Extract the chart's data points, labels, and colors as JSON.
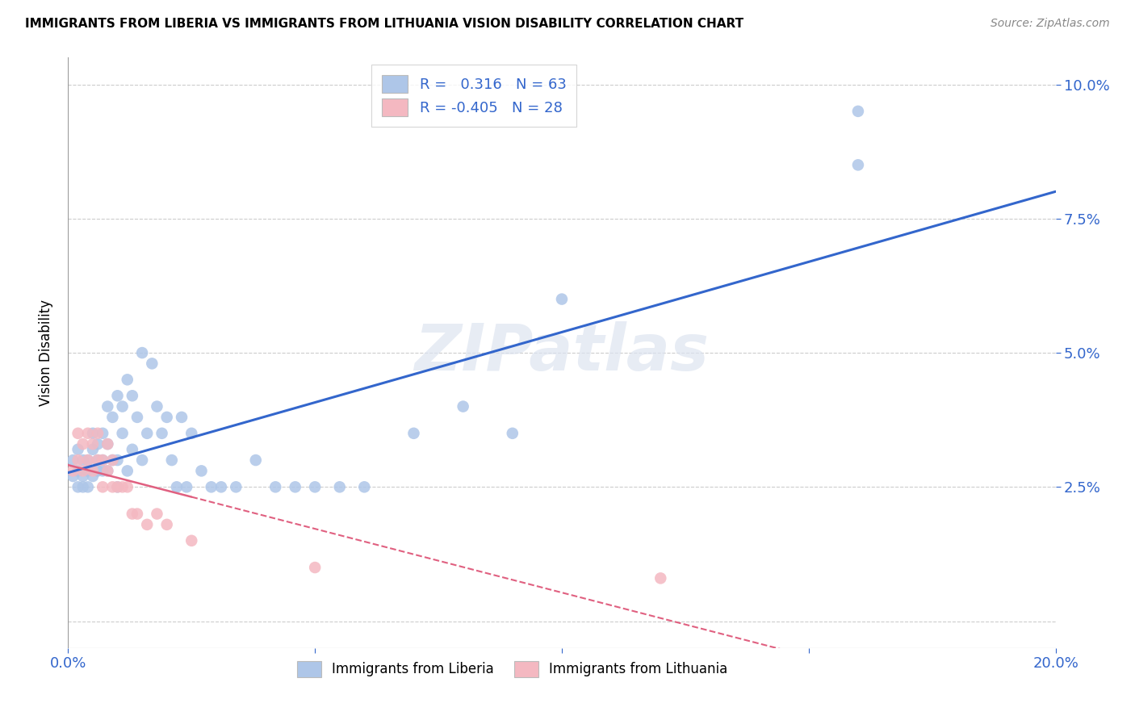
{
  "title": "IMMIGRANTS FROM LIBERIA VS IMMIGRANTS FROM LITHUANIA VISION DISABILITY CORRELATION CHART",
  "source": "Source: ZipAtlas.com",
  "ylabel": "Vision Disability",
  "xlim": [
    0.0,
    0.2
  ],
  "ylim": [
    -0.005,
    0.105
  ],
  "liberia_color": "#aec6e8",
  "lithuania_color": "#f4b8c1",
  "liberia_line_color": "#3366cc",
  "lithuania_line_color": "#e06080",
  "background_color": "#ffffff",
  "grid_color": "#cccccc",
  "liberia_R": 0.316,
  "liberia_N": 63,
  "lithuania_R": -0.405,
  "lithuania_N": 28,
  "liberia_x": [
    0.001,
    0.001,
    0.002,
    0.002,
    0.002,
    0.003,
    0.003,
    0.003,
    0.004,
    0.004,
    0.004,
    0.005,
    0.005,
    0.005,
    0.006,
    0.006,
    0.006,
    0.007,
    0.007,
    0.007,
    0.008,
    0.008,
    0.008,
    0.009,
    0.009,
    0.01,
    0.01,
    0.01,
    0.011,
    0.011,
    0.012,
    0.012,
    0.013,
    0.013,
    0.014,
    0.015,
    0.015,
    0.016,
    0.017,
    0.018,
    0.019,
    0.02,
    0.021,
    0.022,
    0.023,
    0.024,
    0.025,
    0.027,
    0.029,
    0.031,
    0.034,
    0.038,
    0.042,
    0.046,
    0.05,
    0.055,
    0.06,
    0.07,
    0.08,
    0.09,
    0.1,
    0.16,
    0.16
  ],
  "liberia_y": [
    0.03,
    0.027,
    0.028,
    0.032,
    0.025,
    0.03,
    0.027,
    0.025,
    0.03,
    0.028,
    0.025,
    0.032,
    0.035,
    0.027,
    0.03,
    0.033,
    0.028,
    0.035,
    0.03,
    0.028,
    0.04,
    0.033,
    0.028,
    0.038,
    0.03,
    0.042,
    0.03,
    0.025,
    0.04,
    0.035,
    0.045,
    0.028,
    0.042,
    0.032,
    0.038,
    0.05,
    0.03,
    0.035,
    0.048,
    0.04,
    0.035,
    0.038,
    0.03,
    0.025,
    0.038,
    0.025,
    0.035,
    0.028,
    0.025,
    0.025,
    0.025,
    0.03,
    0.025,
    0.025,
    0.025,
    0.025,
    0.025,
    0.035,
    0.04,
    0.035,
    0.06,
    0.095,
    0.085
  ],
  "lithuania_x": [
    0.001,
    0.002,
    0.002,
    0.003,
    0.003,
    0.004,
    0.004,
    0.005,
    0.005,
    0.006,
    0.006,
    0.007,
    0.007,
    0.008,
    0.008,
    0.009,
    0.009,
    0.01,
    0.011,
    0.012,
    0.013,
    0.014,
    0.016,
    0.018,
    0.02,
    0.025,
    0.05,
    0.12
  ],
  "lithuania_y": [
    0.028,
    0.035,
    0.03,
    0.033,
    0.028,
    0.03,
    0.035,
    0.028,
    0.033,
    0.03,
    0.035,
    0.025,
    0.03,
    0.028,
    0.033,
    0.03,
    0.025,
    0.025,
    0.025,
    0.025,
    0.02,
    0.02,
    0.018,
    0.02,
    0.018,
    0.015,
    0.01,
    0.008
  ]
}
